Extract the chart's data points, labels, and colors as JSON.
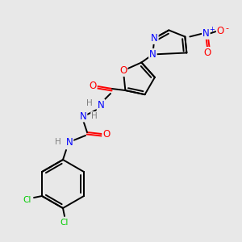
{
  "bg_color": "#e8e8e8",
  "atom_colors": {
    "C": "#000000",
    "N": "#0000ff",
    "O": "#ff0000",
    "Cl": "#00cc00",
    "H": "#808080"
  },
  "figsize": [
    3.0,
    3.0
  ],
  "dpi": 100
}
